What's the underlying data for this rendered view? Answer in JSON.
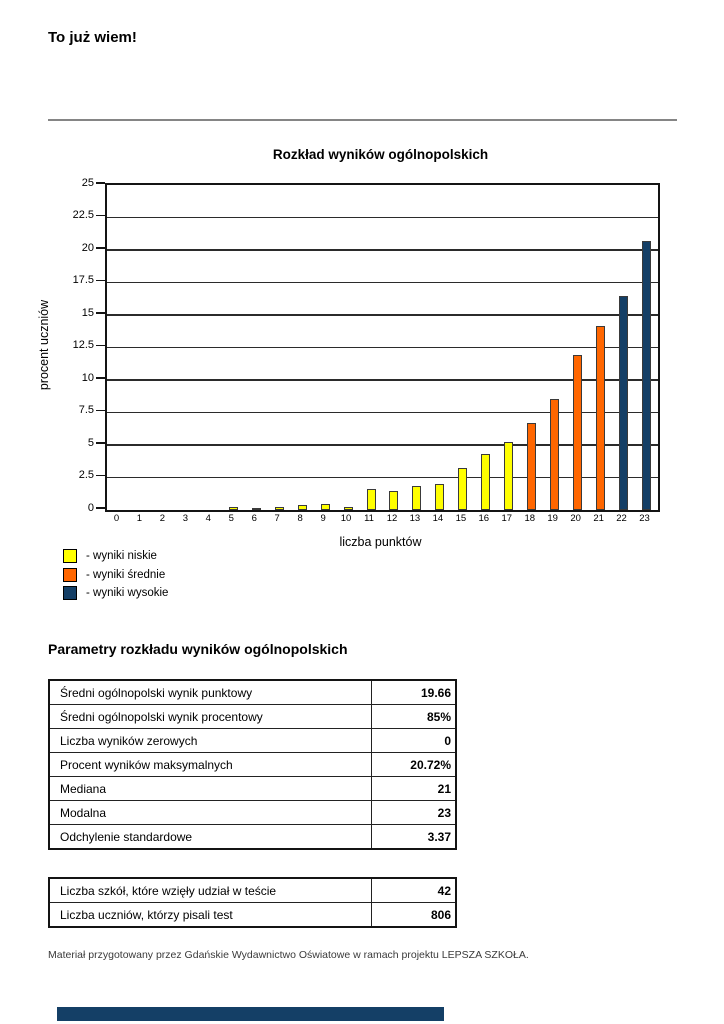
{
  "page": {
    "title": "To już wiem!",
    "footer_note": "Materiał przygotowany przez Gdańskie Wydawnictwo Oświatowe w ramach projektu LEPSZA SZKOŁA."
  },
  "chart_data": {
    "type": "bar",
    "title": "Rozkład wyników ogólnopolskich",
    "xlabel": "liczba punktów",
    "ylabel": "procent uczniów",
    "categories": [
      "0",
      "1",
      "2",
      "3",
      "4",
      "5",
      "6",
      "7",
      "8",
      "9",
      "10",
      "11",
      "12",
      "13",
      "14",
      "15",
      "16",
      "17",
      "18",
      "19",
      "20",
      "21",
      "22",
      "23"
    ],
    "values": [
      0,
      0,
      0,
      0,
      0,
      0.25,
      0.12,
      0.25,
      0.37,
      0.5,
      0.25,
      1.61,
      1.49,
      1.86,
      1.99,
      3.23,
      4.34,
      5.21,
      6.7,
      8.56,
      11.91,
      14.14,
      16.5,
      20.72
    ],
    "ylim": [
      0,
      25
    ],
    "ytick_step": 2.5,
    "grid": true,
    "legend_position": "bottom-left",
    "color_ranges": [
      {
        "from_index": 0,
        "to_index": 17,
        "color": "#FFFF00"
      },
      {
        "from_index": 18,
        "to_index": 21,
        "color": "#FF6600"
      },
      {
        "from_index": 22,
        "to_index": 23,
        "color": "#143F66"
      }
    ],
    "legend": [
      {
        "label": "- wyniki niskie",
        "color": "#FFFF00"
      },
      {
        "label": "- wyniki średnie",
        "color": "#FF6600"
      },
      {
        "label": "- wyniki wysokie",
        "color": "#143F66"
      }
    ]
  },
  "parameters_section": {
    "heading": "Parametry rozkładu wyników ogólnopolskich",
    "main_table": [
      {
        "label": "Średni ogólnopolski wynik punktowy",
        "value": "19.66"
      },
      {
        "label": "Średni ogólnopolski wynik procentowy",
        "value": "85%"
      },
      {
        "label": "Liczba wyników zerowych",
        "value": "0"
      },
      {
        "label": "Procent wyników maksymalnych",
        "value": "20.72%"
      },
      {
        "label": "Mediana",
        "value": "21"
      },
      {
        "label": "Modalna",
        "value": "23"
      },
      {
        "label": "Odchylenie standardowe",
        "value": "3.37"
      }
    ],
    "participation_table": [
      {
        "label": "Liczba szkół, które wzięły udział w teście",
        "value": "42"
      },
      {
        "label": "Liczba uczniów, którzy pisali test",
        "value": "806"
      }
    ]
  },
  "footer_bar_color": "#143F66"
}
